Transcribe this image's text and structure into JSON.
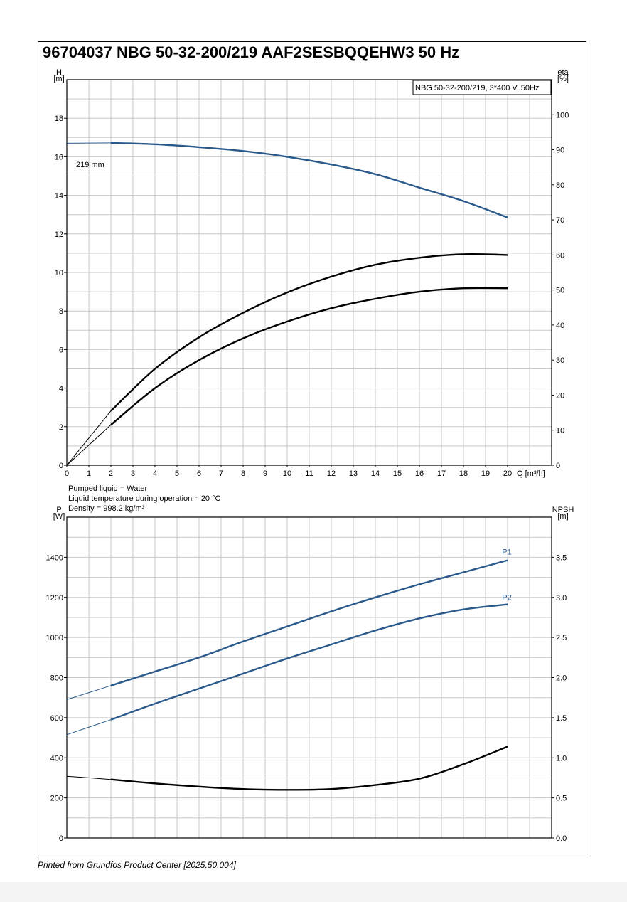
{
  "page": {
    "title": "96704037 NBG 50-32-200/219 AAF2SESBQQEHW3 50 Hz",
    "footer": "Printed from Grundfos Product Center [2025.50.004]"
  },
  "colors": {
    "blue": "#2a5a8c",
    "black": "#000000",
    "grid": "#c8c8c8"
  },
  "chart_data": [
    {
      "type": "line",
      "legend_box": "NBG 50-32-200/219, 3*400 V, 50Hz",
      "xlabel": "Q [m³/h]",
      "ylabel": [
        "H",
        "[m]"
      ],
      "y2label": [
        "eta",
        "[%]"
      ],
      "xlim": [
        0,
        22
      ],
      "ylim": [
        0,
        20
      ],
      "y2lim": [
        0,
        110
      ],
      "grid": true,
      "x_ticks": [
        0,
        1,
        2,
        3,
        4,
        5,
        6,
        7,
        8,
        9,
        10,
        11,
        12,
        13,
        14,
        15,
        16,
        17,
        18,
        19,
        20
      ],
      "y_ticks": [
        0,
        2,
        4,
        6,
        8,
        10,
        12,
        14,
        16,
        18
      ],
      "y2_ticks": [
        0,
        10,
        20,
        30,
        40,
        50,
        60,
        70,
        80,
        90,
        100
      ],
      "series": [
        {
          "name": "219 mm",
          "axis": "left",
          "color": "#2a5a8c",
          "x": [
            0,
            2,
            4,
            6,
            8,
            10,
            12,
            14,
            16,
            18,
            20
          ],
          "y": [
            16.7,
            16.72,
            16.65,
            16.5,
            16.3,
            16.0,
            15.6,
            15.1,
            14.4,
            13.7,
            12.85
          ]
        },
        {
          "axis": "right",
          "color": "#000000",
          "x": [
            0,
            2,
            4,
            6,
            8,
            10,
            12,
            14,
            16,
            18,
            20
          ],
          "y": [
            0,
            15.5,
            27.5,
            36.5,
            43.5,
            49.3,
            53.8,
            57.2,
            59.2,
            60.2,
            60.0
          ]
        },
        {
          "axis": "right",
          "color": "#000000",
          "x": [
            0,
            2,
            4,
            6,
            8,
            10,
            12,
            14,
            16,
            18,
            20
          ],
          "y": [
            0,
            11.5,
            22.0,
            30.0,
            36.2,
            41.0,
            44.8,
            47.5,
            49.5,
            50.5,
            50.5
          ]
        }
      ],
      "annotations": [
        "Pumped liquid = Water",
        "Liquid temperature during operation = 20 °C",
        "Density = 998.2 kg/m³"
      ]
    },
    {
      "type": "line",
      "ylabel": [
        "P",
        "[W]"
      ],
      "y2label": [
        "NPSH",
        "[m]"
      ],
      "xlim": [
        0,
        22
      ],
      "ylim": [
        0,
        1600
      ],
      "y2lim": [
        0,
        4.0
      ],
      "grid": true,
      "y_ticks": [
        0,
        200,
        400,
        600,
        800,
        1000,
        1200,
        1400
      ],
      "y2_ticks": [
        "0.0",
        "0.5",
        "1.0",
        "1.5",
        "2.0",
        "2.5",
        "3.0",
        "3.5"
      ],
      "series": [
        {
          "name": "P1",
          "axis": "left",
          "color": "#2a5a8c",
          "x": [
            0,
            2,
            4,
            6,
            8,
            10,
            12,
            14,
            16,
            18,
            20
          ],
          "y": [
            690,
            760,
            830,
            900,
            980,
            1055,
            1130,
            1200,
            1265,
            1325,
            1385
          ]
        },
        {
          "name": "P2",
          "axis": "left",
          "color": "#2a5a8c",
          "x": [
            0,
            2,
            4,
            6,
            8,
            10,
            12,
            14,
            16,
            18,
            20
          ],
          "y": [
            515,
            590,
            670,
            745,
            820,
            895,
            965,
            1035,
            1095,
            1140,
            1165
          ]
        },
        {
          "axis": "right",
          "color": "#000000",
          "x": [
            0,
            2,
            4,
            6,
            8,
            10,
            12,
            14,
            16,
            18,
            20
          ],
          "y": [
            0.77,
            0.73,
            0.68,
            0.64,
            0.61,
            0.6,
            0.61,
            0.66,
            0.74,
            0.92,
            1.14
          ]
        }
      ]
    }
  ]
}
